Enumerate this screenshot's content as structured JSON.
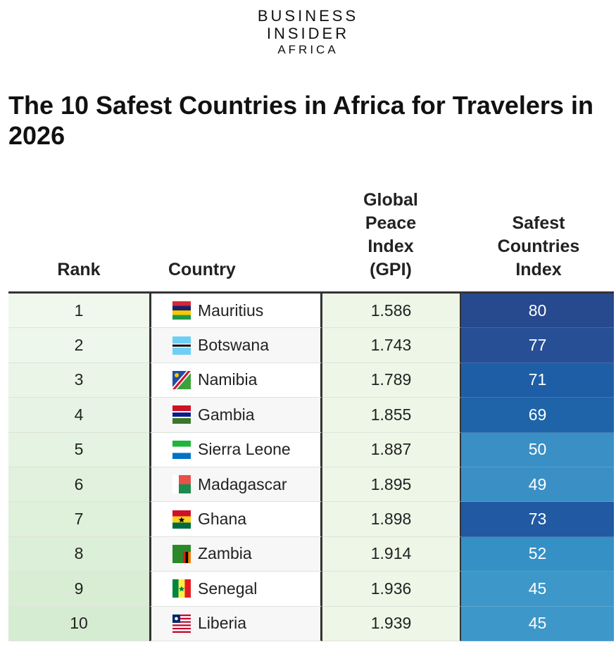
{
  "logo": {
    "line1": "BUSINESS",
    "line2": "INSIDER",
    "line3": "AFRICA"
  },
  "title": "The 10 Safest Countries in Africa for Travelers in 2026",
  "chart_data": {
    "type": "table",
    "columns": [
      "Rank",
      "Country",
      "Global Peace Index (GPI)",
      "Safest Countries Index"
    ],
    "rows": [
      {
        "rank": "1",
        "country": "Mauritius",
        "flag": "flag-mauritius",
        "gpi": "1.586",
        "sci": 80,
        "sci_color": "#27498d"
      },
      {
        "rank": "2",
        "country": "Botswana",
        "flag": "flag-botswana",
        "gpi": "1.743",
        "sci": 77,
        "sci_color": "#264f96"
      },
      {
        "rank": "3",
        "country": "Namibia",
        "flag": "flag-namibia",
        "gpi": "1.789",
        "sci": 71,
        "sci_color": "#1e5ea6"
      },
      {
        "rank": "4",
        "country": "Gambia",
        "flag": "flag-gambia",
        "gpi": "1.855",
        "sci": 69,
        "sci_color": "#1f64a8"
      },
      {
        "rank": "5",
        "country": "Sierra Leone",
        "flag": "flag-sierra-leone",
        "gpi": "1.887",
        "sci": 50,
        "sci_color": "#3a8fc4"
      },
      {
        "rank": "6",
        "country": "Madagascar",
        "flag": "flag-madagascar",
        "gpi": "1.895",
        "sci": 49,
        "sci_color": "#3a90c5"
      },
      {
        "rank": "7",
        "country": "Ghana",
        "flag": "flag-ghana",
        "gpi": "1.898",
        "sci": 73,
        "sci_color": "#2159a2"
      },
      {
        "rank": "8",
        "country": "Zambia",
        "flag": "flag-zambia",
        "gpi": "1.914",
        "sci": 52,
        "sci_color": "#3590c6"
      },
      {
        "rank": "9",
        "country": "Senegal",
        "flag": "flag-senegal",
        "gpi": "1.936",
        "sci": 45,
        "sci_color": "#3d97c8"
      },
      {
        "rank": "10",
        "country": "Liberia",
        "flag": "flag-liberia",
        "gpi": "1.939",
        "sci": 45,
        "sci_color": "#3d97c8"
      }
    ]
  }
}
